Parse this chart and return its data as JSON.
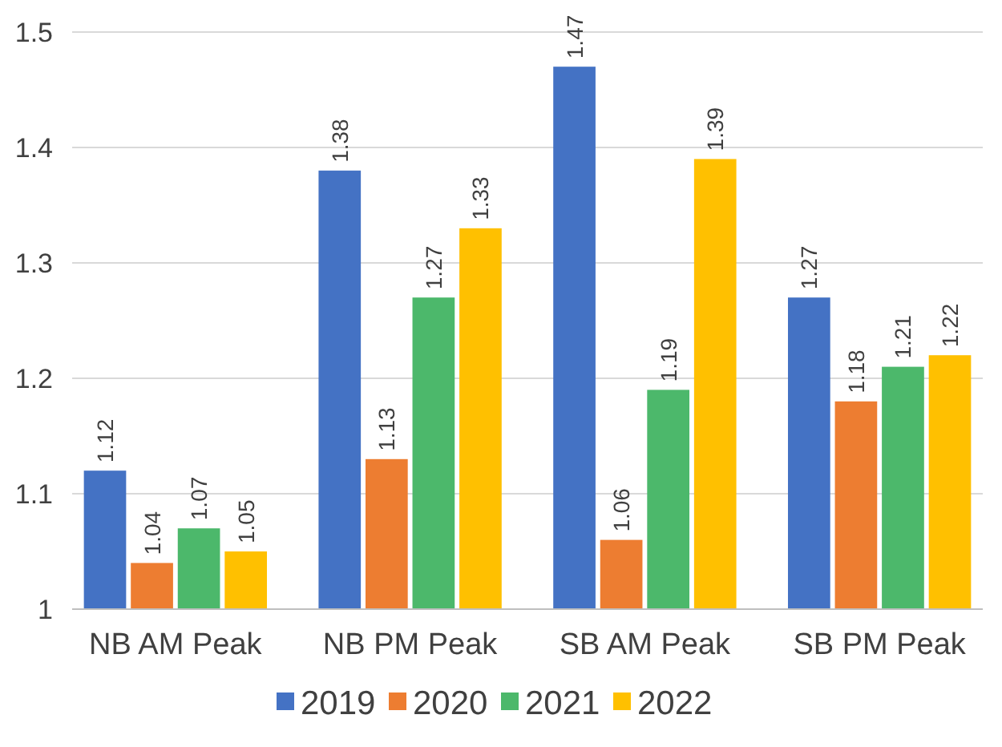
{
  "chart_data": {
    "type": "bar",
    "categories": [
      "NB AM Peak",
      "NB PM Peak",
      "SB AM Peak",
      "SB PM Peak"
    ],
    "series": [
      {
        "name": "2019",
        "color": "#4472c4",
        "values": [
          1.12,
          1.38,
          1.47,
          1.27
        ]
      },
      {
        "name": "2020",
        "color": "#ed7d31",
        "values": [
          1.04,
          1.13,
          1.06,
          1.18
        ]
      },
      {
        "name": "2021",
        "color": "#4cb86b",
        "values": [
          1.07,
          1.27,
          1.19,
          1.21
        ]
      },
      {
        "name": "2022",
        "color": "#ffc000",
        "values": [
          1.05,
          1.33,
          1.39,
          1.22
        ]
      }
    ],
    "ylim": [
      1,
      1.5
    ],
    "yticks": [
      1,
      1.1,
      1.2,
      1.3,
      1.4,
      1.5
    ],
    "grid": "y",
    "legend": "bottom",
    "data_labels": true
  }
}
